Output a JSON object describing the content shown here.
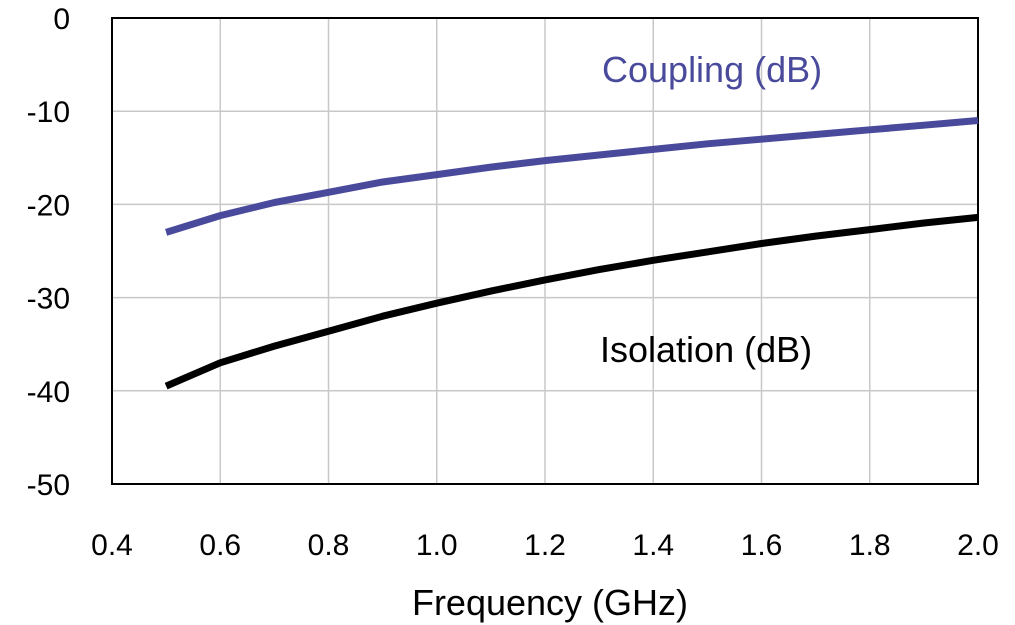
{
  "chart_data": {
    "type": "line",
    "title": "",
    "xlabel": "Frequency (GHz)",
    "ylabel": "",
    "xlim": [
      0.4,
      2.0
    ],
    "ylim": [
      -50,
      0
    ],
    "xticks": [
      0.4,
      0.6,
      0.8,
      1.0,
      1.2,
      1.4,
      1.6,
      1.8,
      2.0
    ],
    "xtick_labels": [
      "0.4",
      "0.6",
      "0.8",
      "1.0",
      "1.2",
      "1.4",
      "1.6",
      "1.8",
      "2.0"
    ],
    "yticks": [
      0,
      -10,
      -20,
      -30,
      -40,
      -50
    ],
    "ytick_labels": [
      "0",
      "-10",
      "-20",
      "-30",
      "-40",
      "-50"
    ],
    "grid": true,
    "legend": "none",
    "series": [
      {
        "name": "Coupling (dB)",
        "color": "#4a4a9c",
        "x": [
          0.5,
          0.6,
          0.7,
          0.8,
          0.9,
          1.0,
          1.1,
          1.2,
          1.3,
          1.4,
          1.5,
          1.6,
          1.7,
          1.8,
          1.9,
          2.0
        ],
        "y": [
          -23,
          -21.2,
          -19.8,
          -18.7,
          -17.6,
          -16.8,
          -16.0,
          -15.3,
          -14.7,
          -14.1,
          -13.5,
          -13.0,
          -12.5,
          -12.0,
          -11.5,
          -11.0
        ]
      },
      {
        "name": "Isolation (dB)",
        "color": "#000000",
        "x": [
          0.5,
          0.6,
          0.7,
          0.8,
          0.9,
          1.0,
          1.1,
          1.2,
          1.3,
          1.4,
          1.5,
          1.6,
          1.7,
          1.8,
          1.9,
          2.0
        ],
        "y": [
          -39.5,
          -37.0,
          -35.2,
          -33.6,
          -32.0,
          -30.6,
          -29.3,
          -28.1,
          -27.0,
          -26.0,
          -25.1,
          -24.2,
          -23.4,
          -22.7,
          -22.0,
          -21.4
        ]
      }
    ]
  }
}
